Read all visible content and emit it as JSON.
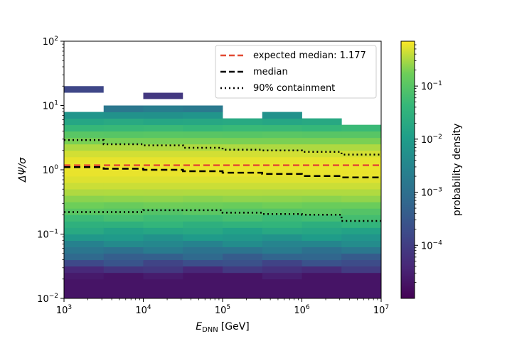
{
  "chart_data": {
    "type": "heatmap",
    "title": "",
    "x_axis": {
      "label_main": "E",
      "label_sub": "DNN",
      "label_unit": "[GeV]",
      "scale": "log",
      "range": [
        1000,
        10000000
      ],
      "ticks": [
        {
          "base": "10",
          "exp": "3",
          "value": 1000
        },
        {
          "base": "10",
          "exp": "4",
          "value": 10000
        },
        {
          "base": "10",
          "exp": "5",
          "value": 100000
        },
        {
          "base": "10",
          "exp": "6",
          "value": 1000000
        },
        {
          "base": "10",
          "exp": "7",
          "value": 10000000
        }
      ]
    },
    "y_axis": {
      "label": "ΔΨ/σ",
      "scale": "log",
      "range": [
        0.01,
        100
      ],
      "ticks": [
        {
          "base": "10",
          "exp": "−2",
          "value": 0.01
        },
        {
          "base": "10",
          "exp": "−1",
          "value": 0.1
        },
        {
          "base": "10",
          "exp": "0",
          "value": 1
        },
        {
          "base": "10",
          "exp": "1",
          "value": 10
        },
        {
          "base": "10",
          "exp": "2",
          "value": 100
        }
      ]
    },
    "colorbar": {
      "label": "probability density",
      "scale": "log",
      "range": [
        1e-05,
        0.7
      ],
      "colormap": "viridis",
      "ticks": [
        {
          "base": "10",
          "exp": "−4",
          "value": 0.0001
        },
        {
          "base": "10",
          "exp": "−3",
          "value": 0.001
        },
        {
          "base": "10",
          "exp": "−2",
          "value": 0.01
        },
        {
          "base": "10",
          "exp": "−1",
          "value": 0.1
        }
      ]
    },
    "x_bin_edges": [
      1000,
      3162,
      10000,
      31623,
      100000,
      316228,
      1000000,
      3162278,
      10000000
    ],
    "y_bins_per_decade": 10,
    "density_profile": {
      "peak_y": 1.15,
      "peak_density": 0.6,
      "column_max_y": [
        7.9,
        10,
        10,
        10,
        6.3,
        7.9,
        6.3,
        5
      ],
      "isolated_bins": [
        {
          "x_bin": 0,
          "y_low": 15.8,
          "y_high": 20,
          "density": 0.00015
        },
        {
          "x_bin": 2,
          "y_low": 12.6,
          "y_high": 15.8,
          "density": 8e-05
        }
      ]
    },
    "series": [
      {
        "name": "expected median: 1.177",
        "style": "dashed",
        "color": "#e24a33",
        "x": [
          1000,
          10000000
        ],
        "y": [
          1.177,
          1.177
        ]
      },
      {
        "name": "median",
        "style": "dashed",
        "color": "#000000",
        "x": [
          1000,
          3162,
          3162,
          10000,
          10000,
          31623,
          31623,
          100000,
          100000,
          316228,
          316228,
          1000000,
          1000000,
          3162278,
          3162278,
          10000000
        ],
        "y": [
          1.1,
          1.1,
          1.04,
          1.04,
          1.0,
          1.0,
          0.95,
          0.95,
          0.9,
          0.9,
          0.86,
          0.86,
          0.8,
          0.8,
          0.76,
          0.76
        ]
      },
      {
        "name": "90% containment",
        "style": "dotted",
        "color": "#000000",
        "upper": {
          "x": [
            1000,
            3162,
            3162,
            10000,
            10000,
            31623,
            31623,
            100000,
            100000,
            316228,
            316228,
            1000000,
            1000000,
            3162278,
            3162278,
            10000000
          ],
          "y": [
            2.9,
            2.9,
            2.5,
            2.5,
            2.4,
            2.4,
            2.2,
            2.2,
            2.05,
            2.05,
            2.0,
            2.0,
            1.9,
            1.9,
            1.72,
            1.72
          ]
        },
        "lower": {
          "x": [
            1000,
            3162,
            3162,
            10000,
            10000,
            31623,
            31623,
            100000,
            100000,
            316228,
            316228,
            1000000,
            1000000,
            3162278,
            3162278,
            10000000
          ],
          "y": [
            0.22,
            0.22,
            0.22,
            0.22,
            0.235,
            0.235,
            0.235,
            0.235,
            0.215,
            0.215,
            0.205,
            0.205,
            0.2,
            0.2,
            0.16,
            0.16
          ]
        }
      }
    ],
    "legend": {
      "position": "upper-right",
      "entries": [
        "expected median: 1.177",
        "median",
        "90% containment"
      ]
    }
  }
}
